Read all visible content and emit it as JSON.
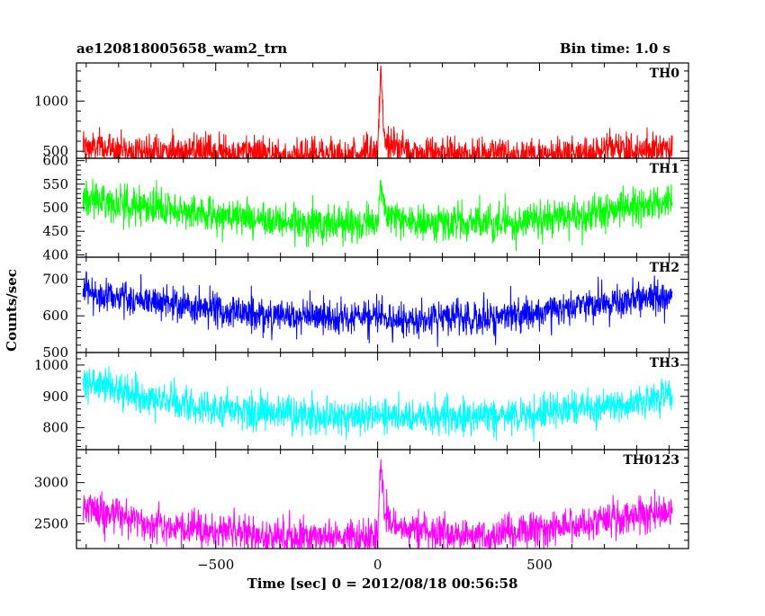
{
  "chart_data": {
    "type": "line",
    "title": "ae120818005658_wam2_trn",
    "subtitle": "Bin time: 1.0 s",
    "xlabel": "Time [sec] 0 = 2012/08/18 00:56:58",
    "ylabel": "Counts/sec",
    "xlim": [
      -930,
      960
    ],
    "x_ticks": [
      -500,
      0,
      500
    ],
    "x_tick_labels": [
      "−500",
      "0",
      "500"
    ],
    "grid": false,
    "panels": [
      {
        "name": "TH0",
        "color": "#ff0000",
        "ylim": [
          430,
          1380
        ],
        "y_ticks": [
          500,
          1000
        ],
        "y_tick_labels": [
          "500",
          "1000"
        ],
        "series": {
          "x": [
            -900,
            -700,
            -500,
            -300,
            -100,
            0,
            10,
            20,
            50,
            100,
            300,
            500,
            700,
            900
          ],
          "y": [
            540,
            500,
            480,
            470,
            470,
            480,
            1320,
            620,
            560,
            480,
            470,
            480,
            500,
            540
          ]
        }
      },
      {
        "name": "TH1",
        "color": "#00ff00",
        "ylim": [
          395,
          605
        ],
        "y_ticks": [
          400,
          450,
          500,
          550,
          600
        ],
        "y_tick_labels": [
          "400",
          "450",
          "500",
          "550",
          "600"
        ],
        "series": {
          "x": [
            -900,
            -700,
            -500,
            -300,
            -100,
            0,
            10,
            20,
            100,
            300,
            500,
            700,
            900
          ],
          "y": [
            520,
            500,
            485,
            470,
            465,
            470,
            560,
            490,
            470,
            465,
            475,
            490,
            515
          ]
        }
      },
      {
        "name": "TH2",
        "color": "#0000ff",
        "ylim": [
          500,
          760
        ],
        "y_ticks": [
          500,
          600,
          700
        ],
        "y_tick_labels": [
          "500",
          "600",
          "700"
        ],
        "series": {
          "x": [
            -900,
            -700,
            -500,
            -300,
            -100,
            0,
            100,
            300,
            500,
            700,
            900
          ],
          "y": [
            665,
            640,
            615,
            600,
            590,
            595,
            590,
            595,
            610,
            630,
            660
          ]
        }
      },
      {
        "name": "TH3",
        "color": "#00ffff",
        "ylim": [
          730,
          1040
        ],
        "y_ticks": [
          800,
          900,
          1000
        ],
        "y_tick_labels": [
          "800",
          "900",
          "1000"
        ],
        "series": {
          "x": [
            -900,
            -700,
            -500,
            -300,
            -100,
            0,
            100,
            300,
            500,
            700,
            900
          ],
          "y": [
            950,
            890,
            860,
            845,
            835,
            840,
            835,
            835,
            845,
            870,
            905
          ]
        }
      },
      {
        "name": "TH0123",
        "color": "#ff00ff",
        "ylim": [
          2200,
          3400
        ],
        "y_ticks": [
          2500,
          3000
        ],
        "y_tick_labels": [
          "2500",
          "3000"
        ],
        "series": {
          "x": [
            -900,
            -700,
            -500,
            -300,
            -100,
            0,
            10,
            20,
            50,
            100,
            300,
            500,
            700,
            900
          ],
          "y": [
            2700,
            2500,
            2400,
            2350,
            2340,
            2360,
            3300,
            2650,
            2500,
            2420,
            2360,
            2420,
            2530,
            2650
          ]
        }
      }
    ]
  }
}
